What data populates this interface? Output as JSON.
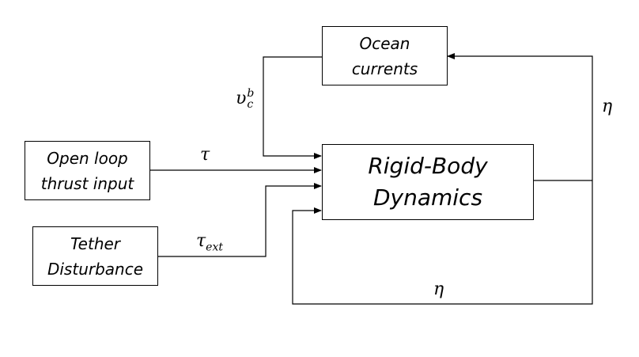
{
  "blocks": {
    "ocean_currents": {
      "line1": "Ocean",
      "line2": "currents"
    },
    "open_loop": {
      "line1": "Open loop",
      "line2": "thrust input"
    },
    "tether": {
      "line1": "Tether",
      "line2": "Disturbance"
    },
    "rigid_body": {
      "line1": "Rigid-Body",
      "line2": "Dynamics"
    }
  },
  "signals": {
    "current_velocity": {
      "base": "υ",
      "sup": "b",
      "sub": "c"
    },
    "thrust": "τ",
    "tether_force": {
      "base": "τ",
      "sub": "ext"
    },
    "eta_right": "η",
    "eta_bottom": "η"
  },
  "colors": {
    "line": "#000000",
    "background": "#ffffff"
  }
}
